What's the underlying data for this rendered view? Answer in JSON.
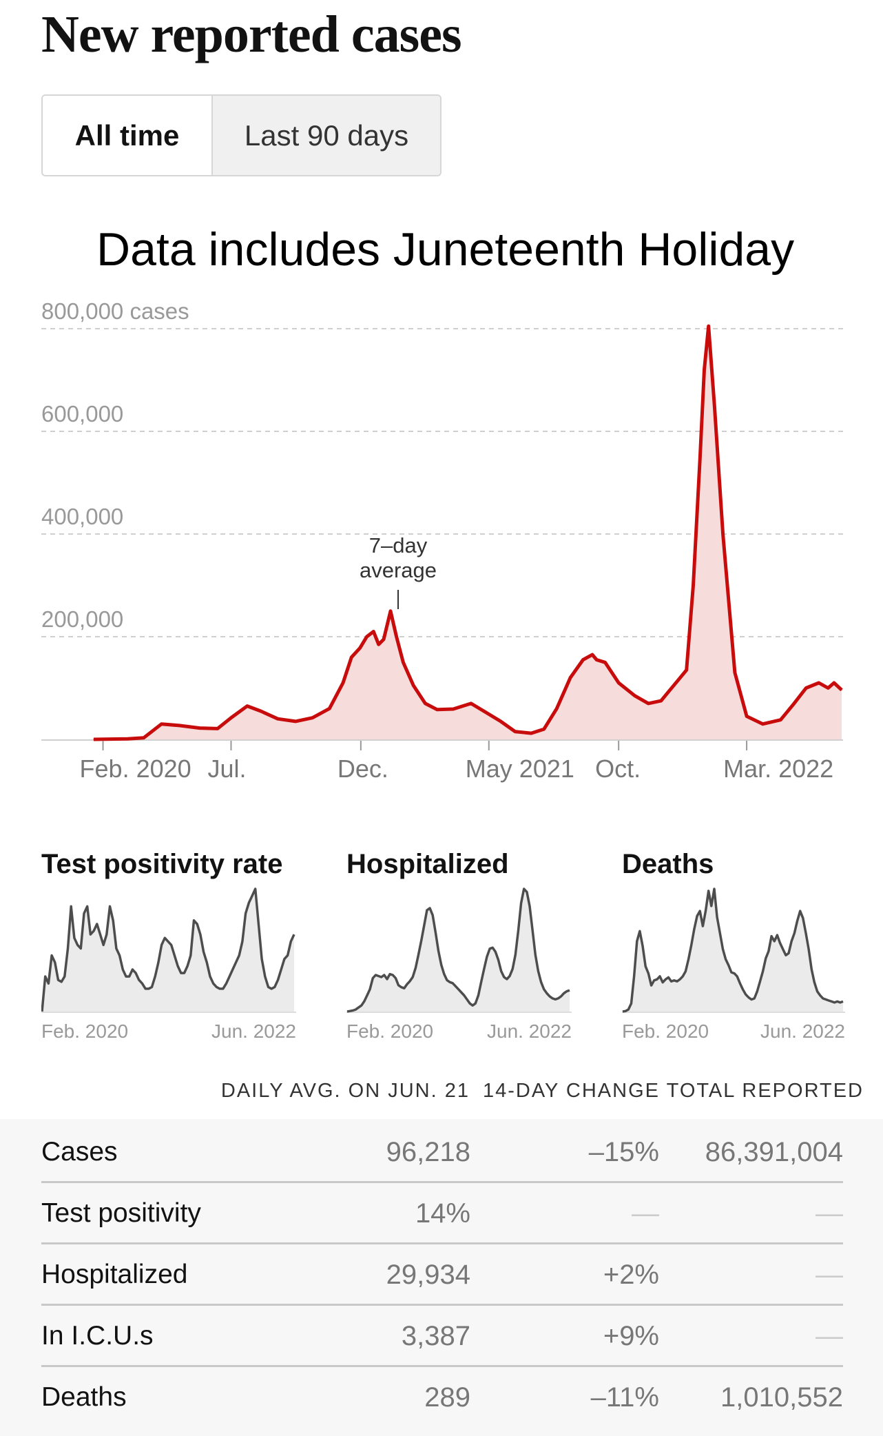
{
  "header": {
    "title": "New reported cases",
    "toggle": {
      "active_label": "All time",
      "inactive_label": "Last 90 days"
    },
    "annotation": "Data includes Juneteenth Holiday"
  },
  "colors": {
    "cases_line": "#c80c0c",
    "cases_fill": "#f7dcdc",
    "mini_line": "#4d4d4d",
    "mini_fill": "#ebebeb"
  },
  "chart_data": [
    {
      "type": "area",
      "title": "New reported cases",
      "series": [
        {
          "name": "7-day average",
          "x": [
            "2020-01-21",
            "2020-03-01",
            "2020-03-20",
            "2020-04-10",
            "2020-05-01",
            "2020-05-25",
            "2020-06-15",
            "2020-07-01",
            "2020-07-20",
            "2020-08-05",
            "2020-08-25",
            "2020-09-15",
            "2020-10-05",
            "2020-10-25",
            "2020-11-10",
            "2020-11-20",
            "2020-11-30",
            "2020-12-08",
            "2020-12-16",
            "2020-12-22",
            "2020-12-28",
            "2021-01-05",
            "2021-01-12",
            "2021-01-20",
            "2021-02-01",
            "2021-02-15",
            "2021-03-01",
            "2021-03-20",
            "2021-04-10",
            "2021-04-25",
            "2021-05-15",
            "2021-06-01",
            "2021-06-20",
            "2021-07-05",
            "2021-07-20",
            "2021-08-05",
            "2021-08-20",
            "2021-08-31",
            "2021-09-05",
            "2021-09-15",
            "2021-10-01",
            "2021-10-20",
            "2021-11-05",
            "2021-11-20",
            "2021-11-30",
            "2021-12-10",
            "2021-12-20",
            "2021-12-28",
            "2022-01-05",
            "2022-01-10",
            "2022-01-15",
            "2022-01-22",
            "2022-02-01",
            "2022-02-15",
            "2022-03-01",
            "2022-03-20",
            "2022-04-10",
            "2022-04-25",
            "2022-05-10",
            "2022-05-25",
            "2022-06-05",
            "2022-06-12",
            "2022-06-21"
          ],
          "values": [
            0,
            1000,
            3000,
            30000,
            27000,
            22000,
            21000,
            42000,
            65000,
            55000,
            40000,
            35000,
            42000,
            60000,
            110000,
            160000,
            178000,
            200000,
            210000,
            185000,
            195000,
            250000,
            200000,
            150000,
            105000,
            70000,
            58000,
            59000,
            70000,
            55000,
            35000,
            15000,
            12000,
            20000,
            60000,
            120000,
            155000,
            165000,
            155000,
            150000,
            110000,
            85000,
            70000,
            75000,
            95000,
            115000,
            135000,
            300000,
            550000,
            720000,
            805000,
            650000,
            400000,
            130000,
            45000,
            30000,
            38000,
            68000,
            100000,
            110000,
            100000,
            110000,
            96218
          ]
        }
      ],
      "xticks": [
        "Feb. 2020",
        "Jul.",
        "Dec.",
        "May 2021",
        "Oct.",
        "Mar. 2022"
      ],
      "yticks": [
        "200,000",
        "400,000",
        "600,000",
        "800,000 cases"
      ],
      "ylim": [
        0,
        800000
      ],
      "grid": true,
      "annotation": "7–day average"
    },
    {
      "type": "area",
      "title": "Test positivity rate",
      "series": [
        {
          "values": [
            0,
            10,
            8,
            16,
            14,
            9,
            8.5,
            10,
            18,
            30,
            21,
            19,
            18,
            28,
            30,
            22,
            23,
            25,
            22,
            19,
            22,
            30,
            26,
            18,
            16,
            12,
            10,
            10,
            12,
            11,
            9,
            8,
            6.5,
            6.5,
            7,
            10,
            14,
            19,
            21,
            20,
            19,
            16,
            13,
            11,
            11,
            13,
            16,
            26,
            25,
            22,
            17,
            14,
            10,
            8,
            7,
            6.5,
            6.5,
            8,
            10,
            12,
            14,
            16,
            20,
            28,
            31,
            33,
            35,
            25,
            15,
            10,
            7,
            6.5,
            7,
            9,
            12,
            15,
            16,
            20,
            22
          ]
        }
      ],
      "xticks": [
        "Feb. 2020",
        "Jun. 2022"
      ]
    },
    {
      "type": "area",
      "title": "Hospitalized",
      "series": [
        {
          "values": [
            0,
            0.5,
            1,
            2,
            4,
            6,
            10,
            16,
            22,
            33,
            36,
            35,
            34,
            36,
            32,
            37,
            36,
            33,
            26,
            24,
            23,
            27,
            30,
            34,
            43,
            56,
            70,
            85,
            100,
            102,
            95,
            78,
            60,
            46,
            37,
            31,
            29,
            28,
            25,
            22,
            19,
            16,
            12,
            8,
            6,
            8,
            16,
            29,
            42,
            54,
            62,
            63,
            59,
            51,
            40,
            34,
            32,
            35,
            42,
            56,
            80,
            107,
            121,
            118,
            104,
            80,
            56,
            40,
            29,
            22,
            18,
            15,
            13,
            12,
            13,
            15,
            18,
            20,
            21
          ]
        }
      ],
      "xticks": [
        "Feb. 2020",
        "Jun. 2022"
      ]
    },
    {
      "type": "area",
      "title": "Deaths",
      "series": [
        {
          "values": [
            0,
            0.5,
            2,
            8,
            35,
            70,
            80,
            65,
            45,
            38,
            26,
            31,
            32,
            35,
            29,
            32,
            34,
            30,
            31,
            30,
            32,
            35,
            40,
            52,
            66,
            82,
            95,
            100,
            85,
            100,
            120,
            105,
            122,
            94,
            78,
            62,
            52,
            46,
            39,
            38,
            35,
            28,
            22,
            17,
            14,
            12,
            13,
            20,
            30,
            40,
            53,
            60,
            75,
            70,
            76,
            68,
            62,
            56,
            58,
            70,
            78,
            90,
            100,
            93,
            78,
            62,
            42,
            29,
            20,
            16,
            13,
            12,
            11,
            10,
            9,
            10,
            9,
            10
          ]
        }
      ],
      "xticks": [
        "Feb. 2020",
        "Jun. 2022"
      ]
    }
  ],
  "table": {
    "headers": [
      "DAILY AVG. ON JUN. 21",
      "14-DAY CHANGE",
      "TOTAL REPORTED"
    ],
    "rows": [
      {
        "label": "Cases",
        "avg": "96,218",
        "change": "–15%",
        "total": "86,391,004"
      },
      {
        "label": "Test positivity",
        "avg": "14%",
        "change": "—",
        "total": "—"
      },
      {
        "label": "Hospitalized",
        "avg": "29,934",
        "change": "+2%",
        "total": "—"
      },
      {
        "label": "In I.C.U.s",
        "avg": "3,387",
        "change": "+9%",
        "total": "—"
      },
      {
        "label": "Deaths",
        "avg": "289",
        "change": "–11%",
        "total": "1,010,552"
      }
    ]
  }
}
